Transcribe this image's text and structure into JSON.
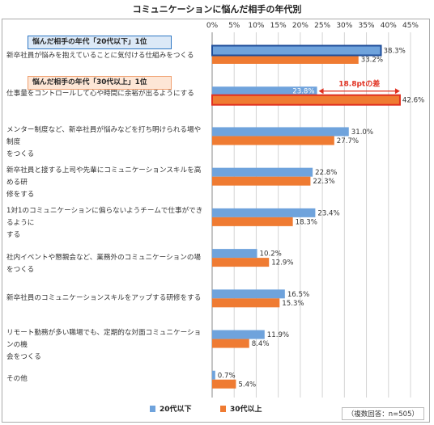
{
  "chart_data": {
    "type": "bar",
    "orientation": "horizontal",
    "title": "コミュニケーションに悩んだ相手の年代別",
    "xlim": [
      0,
      45
    ],
    "x_ticks": [
      "0%",
      "5%",
      "10%",
      "15%",
      "20%",
      "25%",
      "30%",
      "35%",
      "40%",
      "45%"
    ],
    "categories": [
      [
        "新卒社員が悩みを抱えていることに気付ける仕組みをつくる"
      ],
      [
        "仕事量をコントロールして心や時間に余裕が出るようにする"
      ],
      [
        "メンター制度など、新卒社員が悩みなどを打ち明けられる場や制度",
        "をつくる"
      ],
      [
        "新卒社員と接する上司や先輩にコミュニケーションスキルを高める研",
        "修をする"
      ],
      [
        "1対1のコミュニケーションに偏らないようチームで仕事ができるように",
        "する"
      ],
      [
        "社内イベントや懇親会など、業務外のコミュニケーションの場をつくる"
      ],
      [
        "新卒社員のコミュニケーションスキルをアップする研修をする"
      ],
      [
        "リモート勤務が多い職場でも、定期的な対面コミュニケーションの機",
        "会をつくる"
      ],
      [
        "その他"
      ]
    ],
    "series": [
      {
        "name": "20代以下",
        "color": "#6fa3dc",
        "values": [
          38.3,
          23.8,
          31.0,
          22.8,
          23.4,
          10.2,
          16.5,
          11.9,
          0.7
        ]
      },
      {
        "name": "30代以上",
        "color": "#ef7b32",
        "values": [
          33.2,
          42.6,
          27.7,
          22.3,
          18.3,
          12.9,
          15.3,
          8.4,
          5.4
        ]
      }
    ],
    "value_labels": [
      [
        "38.3%",
        "23.8%",
        "31.0%",
        "22.8%",
        "23.4%",
        "10.2%",
        "16.5%",
        "11.9%",
        "0.7%"
      ],
      [
        "33.2%",
        "42.6%",
        "27.7%",
        "22.3%",
        "18.3%",
        "12.9%",
        "15.3%",
        "8.4%",
        "5.4%"
      ]
    ],
    "highlights": [
      {
        "badge": "悩んだ相手の年代「20代以下」1位",
        "series": 0,
        "category": 0
      },
      {
        "badge": "悩んだ相手の年代「30代以上」1位",
        "series": 1,
        "category": 1
      }
    ],
    "annotation": "18.8ptの差",
    "legend_position": "bottom-center",
    "note": "（複数回答：n=505）",
    "grid": true
  }
}
